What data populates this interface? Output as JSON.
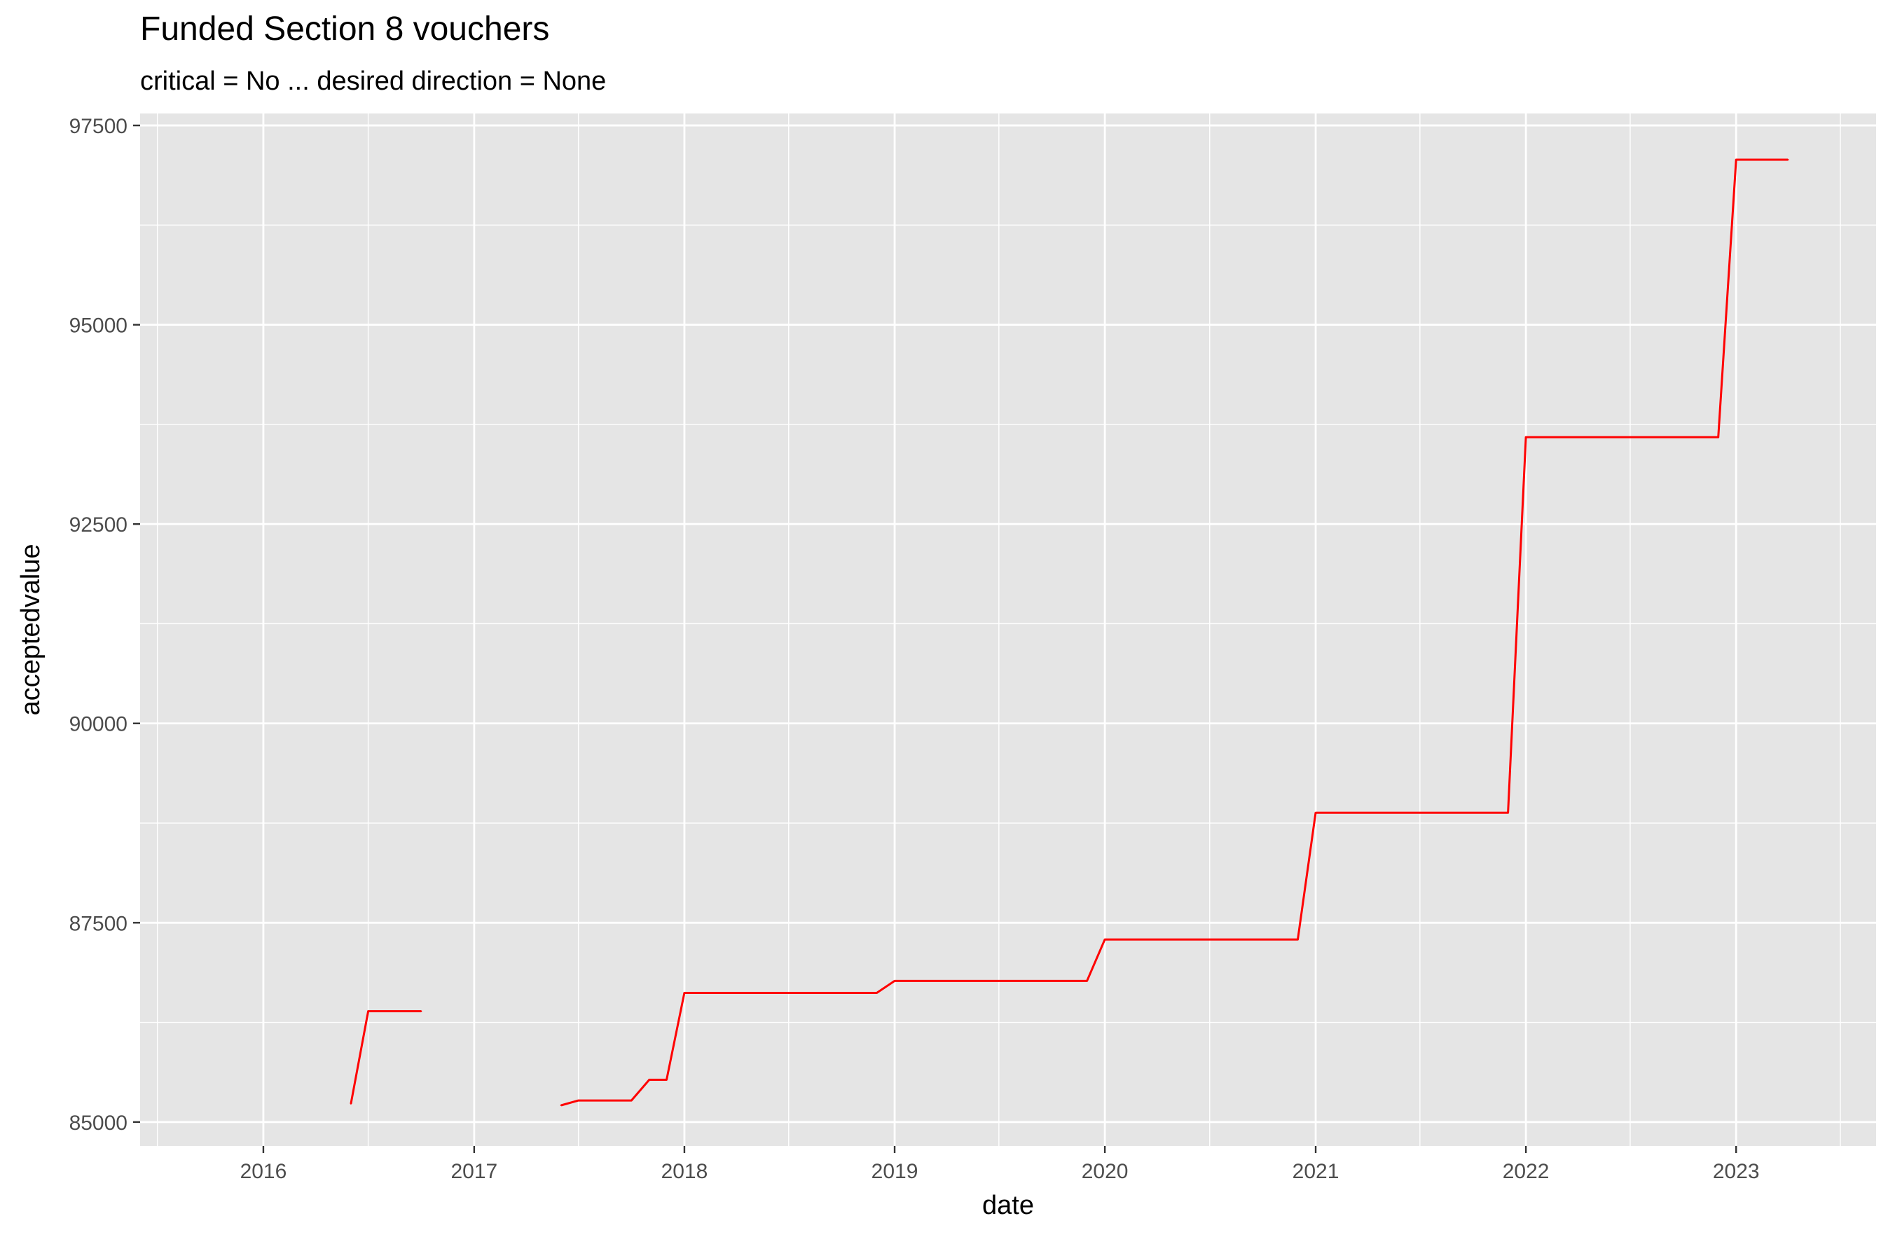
{
  "chart_data": {
    "type": "line",
    "title": "Funded Section 8 vouchers",
    "subtitle": "critical = No ... desired direction = None",
    "xlabel": "date",
    "ylabel": "acceptedvalue",
    "xlim": [
      "2015-06-01",
      "2023-09-01"
    ],
    "ylim": [
      84700,
      97650
    ],
    "x_ticks": [
      "2016",
      "2017",
      "2018",
      "2019",
      "2020",
      "2021",
      "2022",
      "2023"
    ],
    "y_ticks": [
      "85000",
      "87500",
      "90000",
      "92500",
      "95000",
      "97500"
    ],
    "grid": true,
    "legend": "none",
    "colors": {
      "panel": "#e5e5e5",
      "grid": "#ffffff",
      "line": "#ff0000",
      "tick": "#333333"
    },
    "series": [
      {
        "values": [
          {
            "x": "2016-06-01",
            "y": 85230
          },
          {
            "x": "2016-07-01",
            "y": 86390
          },
          {
            "x": "2016-10-01",
            "y": 86390
          }
        ]
      },
      {
        "values": [
          {
            "x": "2017-06-01",
            "y": 85210
          },
          {
            "x": "2017-07-01",
            "y": 85270
          },
          {
            "x": "2017-10-01",
            "y": 85270
          },
          {
            "x": "2017-11-01",
            "y": 85530
          },
          {
            "x": "2017-12-01",
            "y": 85530
          },
          {
            "x": "2018-01-01",
            "y": 86620
          },
          {
            "x": "2018-12-01",
            "y": 86620
          },
          {
            "x": "2019-01-01",
            "y": 86770
          },
          {
            "x": "2019-12-01",
            "y": 86770
          },
          {
            "x": "2020-01-01",
            "y": 87290
          },
          {
            "x": "2020-12-01",
            "y": 87290
          },
          {
            "x": "2021-01-01",
            "y": 88880
          },
          {
            "x": "2021-12-01",
            "y": 88880
          },
          {
            "x": "2022-01-01",
            "y": 93590
          },
          {
            "x": "2022-12-01",
            "y": 93590
          },
          {
            "x": "2023-01-01",
            "y": 97070
          },
          {
            "x": "2023-04-01",
            "y": 97070
          }
        ]
      }
    ]
  }
}
